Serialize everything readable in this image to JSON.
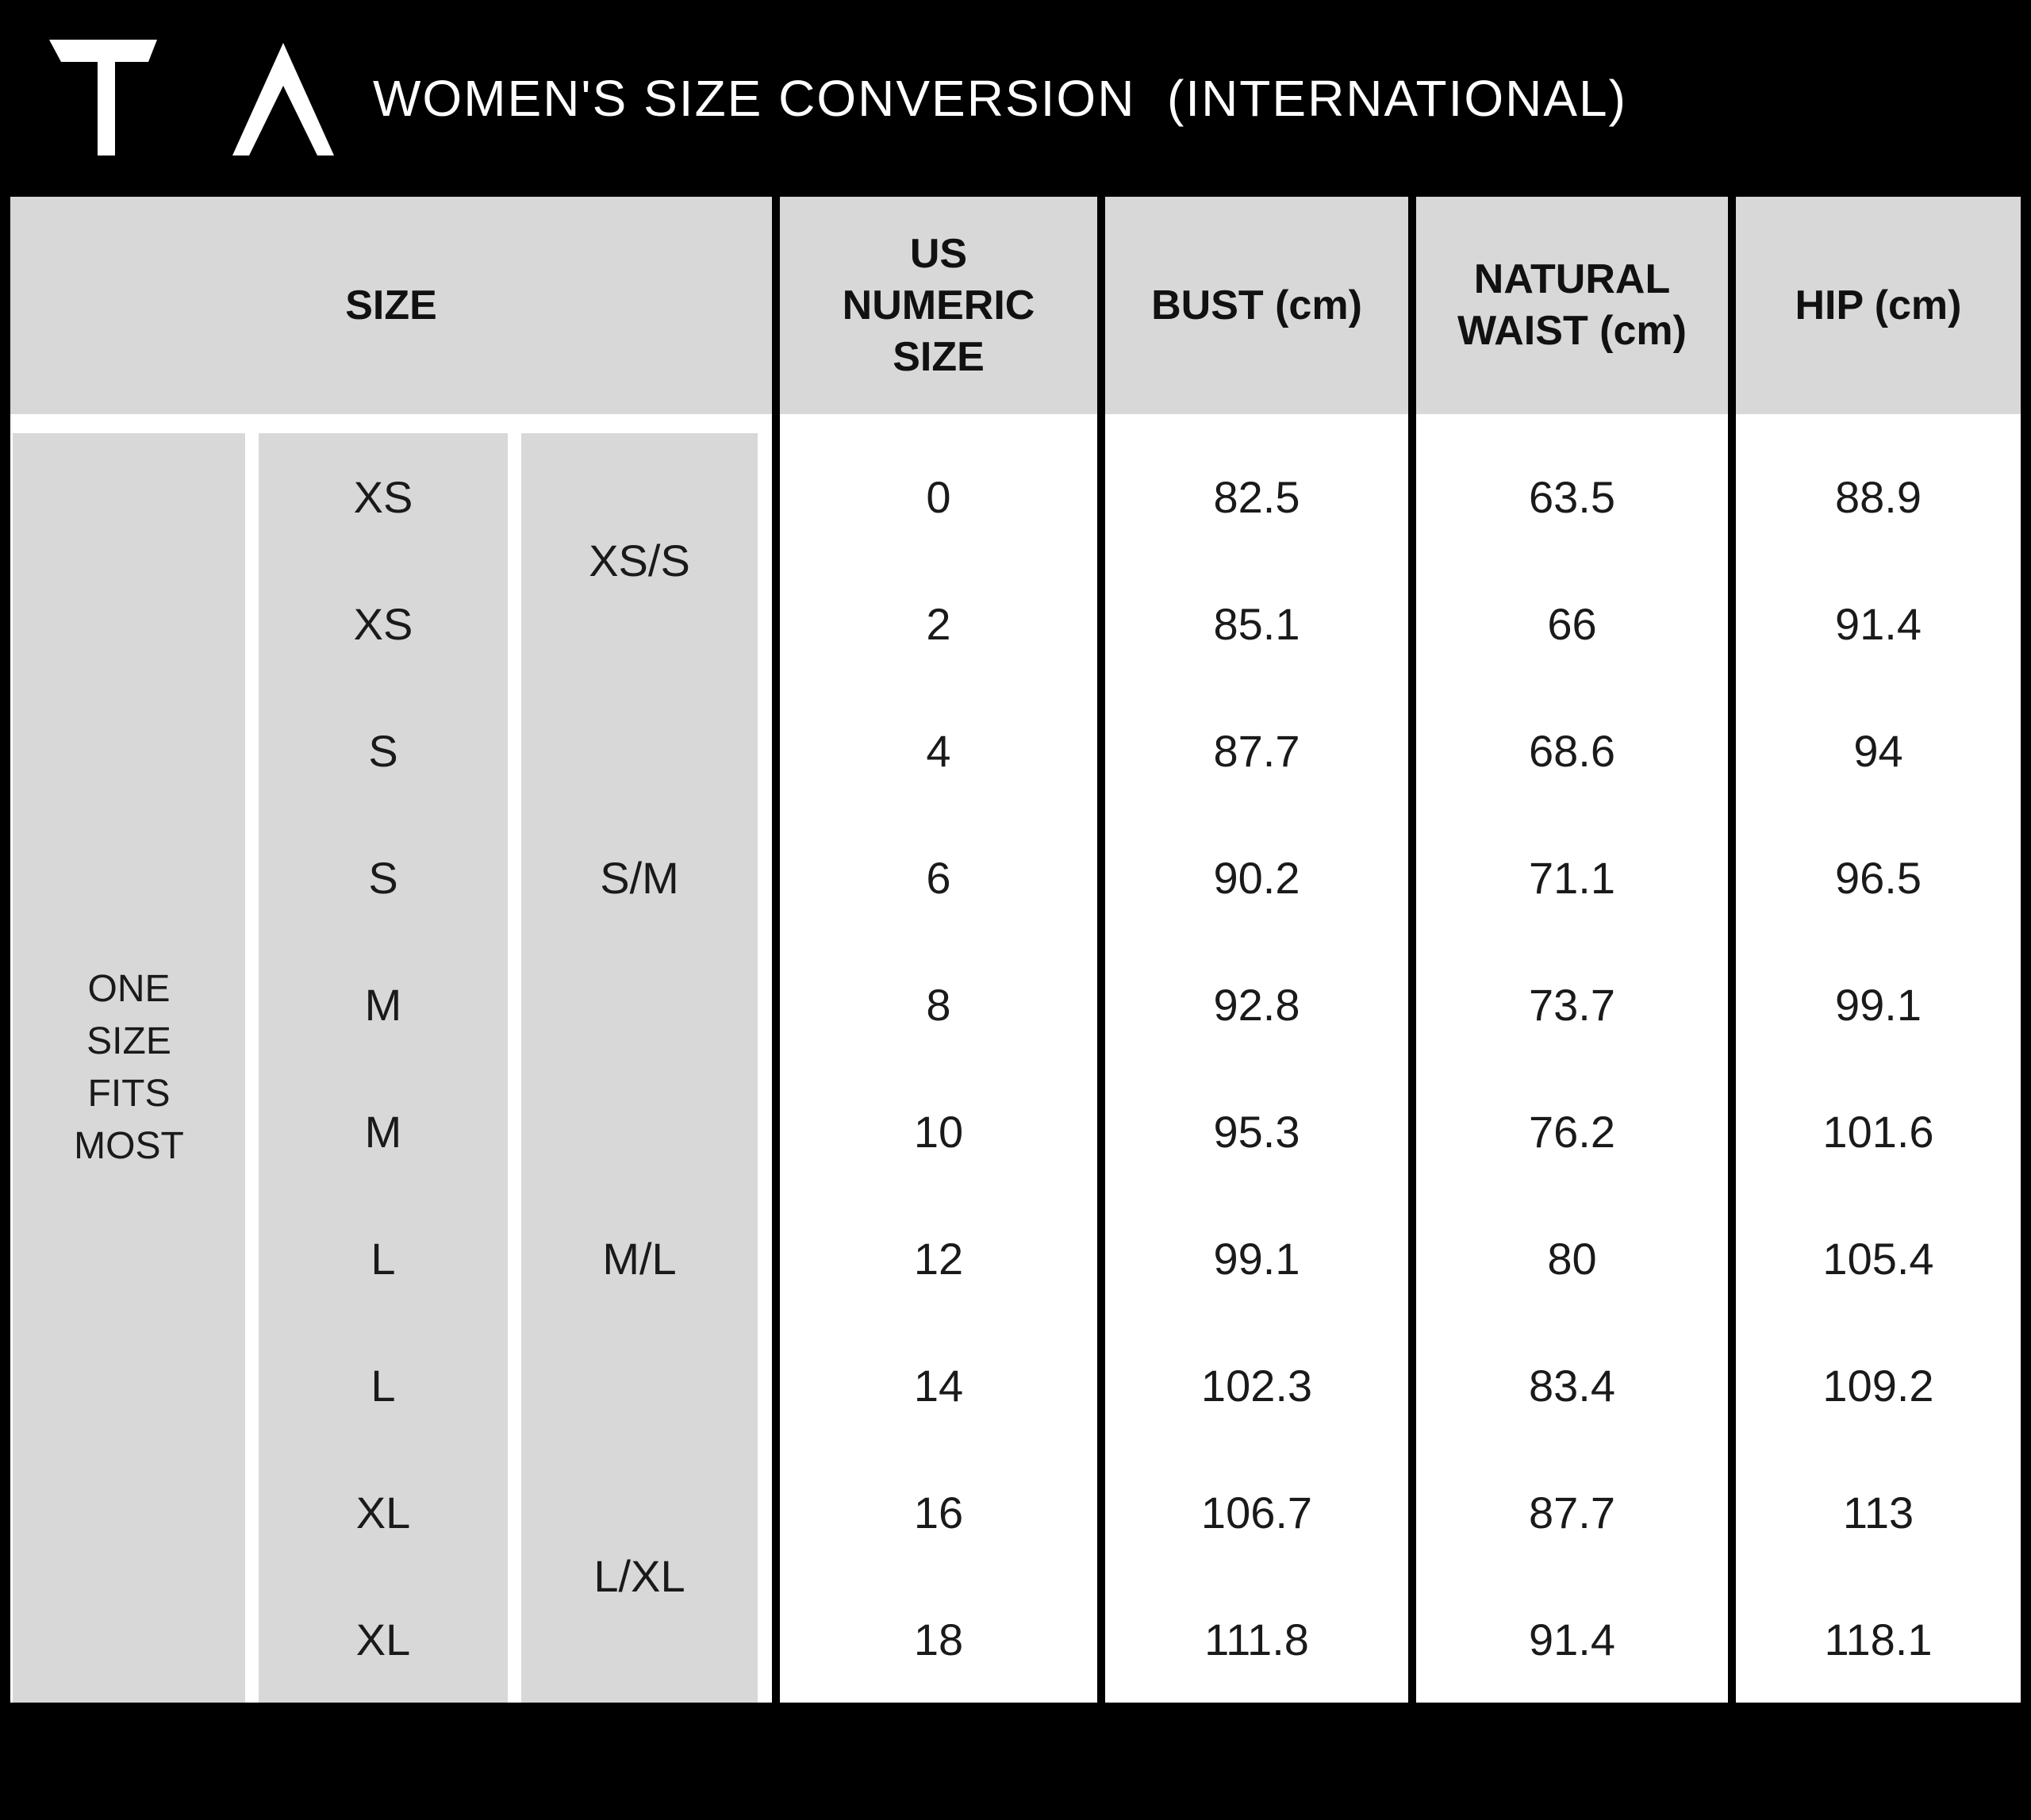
{
  "brand": {
    "logo_icon": "ta-monogram-logo",
    "logo_color": "#ffffff"
  },
  "header": {
    "title": "WOMEN'S SIZE CONVERSION  (INTERNATIONAL)"
  },
  "table": {
    "column_headers": [
      "SIZE",
      "US NUMERIC SIZE",
      "BUST (cm)",
      "NATURAL WAIST (cm)",
      "HIP (cm)"
    ],
    "one_size_label_lines": [
      "ONE",
      "SIZE",
      "FITS",
      "MOST"
    ],
    "size_letter_column": [
      "XS",
      "XS",
      "S",
      "S",
      "M",
      "M",
      "L",
      "L",
      "XL",
      "XL"
    ],
    "combined_size_column": [
      {
        "label": "XS/S",
        "row_span": 2
      },
      {
        "label": "S/M",
        "row_span": 3
      },
      {
        "label": "M/L",
        "row_span": 3
      },
      {
        "label": "L/XL",
        "row_span": 2
      }
    ],
    "rows": [
      {
        "us_numeric_size": "0",
        "bust_cm": "82.5",
        "natural_waist_cm": "63.5",
        "hip_cm": "88.9"
      },
      {
        "us_numeric_size": "2",
        "bust_cm": "85.1",
        "natural_waist_cm": "66",
        "hip_cm": "91.4"
      },
      {
        "us_numeric_size": "4",
        "bust_cm": "87.7",
        "natural_waist_cm": "68.6",
        "hip_cm": "94"
      },
      {
        "us_numeric_size": "6",
        "bust_cm": "90.2",
        "natural_waist_cm": "71.1",
        "hip_cm": "96.5"
      },
      {
        "us_numeric_size": "8",
        "bust_cm": "92.8",
        "natural_waist_cm": "73.7",
        "hip_cm": "99.1"
      },
      {
        "us_numeric_size": "10",
        "bust_cm": "95.3",
        "natural_waist_cm": "76.2",
        "hip_cm": "101.6"
      },
      {
        "us_numeric_size": "12",
        "bust_cm": "99.1",
        "natural_waist_cm": "80",
        "hip_cm": "105.4"
      },
      {
        "us_numeric_size": "14",
        "bust_cm": "102.3",
        "natural_waist_cm": "83.4",
        "hip_cm": "109.2"
      },
      {
        "us_numeric_size": "16",
        "bust_cm": "106.7",
        "natural_waist_cm": "87.7",
        "hip_cm": "113"
      },
      {
        "us_numeric_size": "18",
        "bust_cm": "111.8",
        "natural_waist_cm": "91.4",
        "hip_cm": "118.1"
      }
    ]
  },
  "colors": {
    "page_background": "#000000",
    "cell_gray": "#d8d8d8",
    "body_background": "#ffffff",
    "text_black": "#1a1a1a",
    "banner_text_white": "#ffffff"
  },
  "chart_data": {
    "type": "table",
    "title": "WOMEN'S SIZE CONVERSION (INTERNATIONAL)",
    "columns": [
      "SIZE",
      "US NUMERIC SIZE",
      "BUST (cm)",
      "NATURAL WAIST (cm)",
      "HIP (cm)"
    ],
    "rows": [
      [
        "XS (XS/S)",
        "0",
        82.5,
        63.5,
        88.9
      ],
      [
        "XS (XS/S)",
        "2",
        85.1,
        66,
        91.4
      ],
      [
        "S (S/M)",
        "4",
        87.7,
        68.6,
        94
      ],
      [
        "S (S/M)",
        "6",
        90.2,
        71.1,
        96.5
      ],
      [
        "M (S/M)",
        "8",
        92.8,
        73.7,
        99.1
      ],
      [
        "M (M/L)",
        "10",
        95.3,
        76.2,
        101.6
      ],
      [
        "L (M/L)",
        "12",
        99.1,
        80,
        105.4
      ],
      [
        "L (M/L)",
        "14",
        102.3,
        83.4,
        109.2
      ],
      [
        "XL (L/XL)",
        "16",
        106.7,
        87.7,
        113
      ],
      [
        "XL (L/XL)",
        "18",
        111.8,
        91.4,
        118.1
      ]
    ],
    "notes": "Left SIZE group column reads ONE SIZE FITS MOST for all rows"
  }
}
